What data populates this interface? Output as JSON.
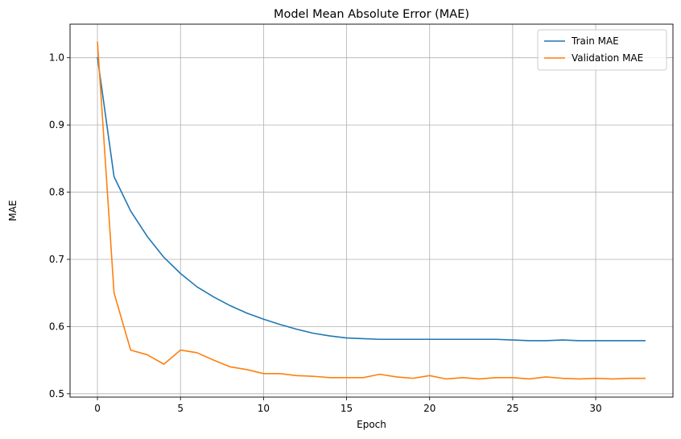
{
  "chart_data": {
    "type": "line",
    "title": "Model Mean Absolute Error (MAE)",
    "xlabel": "Epoch",
    "ylabel": "MAE",
    "xlim": [
      -1.65,
      34.65
    ],
    "ylim": [
      0.495,
      1.05
    ],
    "xticks": [
      0,
      5,
      10,
      15,
      20,
      25,
      30
    ],
    "yticks": [
      0.5,
      0.6,
      0.7,
      0.8,
      0.9,
      1.0
    ],
    "ytick_labels": [
      "0.5",
      "0.6",
      "0.7",
      "0.8",
      "0.9",
      "1.0"
    ],
    "grid": true,
    "legend_position": "top-right",
    "x": [
      0,
      1,
      2,
      3,
      4,
      5,
      6,
      7,
      8,
      9,
      10,
      11,
      12,
      13,
      14,
      15,
      16,
      17,
      18,
      19,
      20,
      21,
      22,
      23,
      24,
      25,
      26,
      27,
      28,
      29,
      30,
      31,
      32,
      33
    ],
    "series": [
      {
        "name": "Train MAE",
        "color": "#1f77b4",
        "values": [
          1.001,
          0.823,
          0.772,
          0.734,
          0.703,
          0.679,
          0.659,
          0.644,
          0.631,
          0.62,
          0.611,
          0.603,
          0.596,
          0.59,
          0.586,
          0.583,
          0.582,
          0.581,
          0.581,
          0.581,
          0.581,
          0.581,
          0.581,
          0.581,
          0.581,
          0.58,
          0.579,
          0.579,
          0.58,
          0.579,
          0.579,
          0.579,
          0.579,
          0.579
        ]
      },
      {
        "name": "Validation MAE",
        "color": "#ff7f0e",
        "values": [
          1.024,
          0.65,
          0.565,
          0.558,
          0.544,
          0.565,
          0.561,
          0.55,
          0.54,
          0.536,
          0.53,
          0.53,
          0.527,
          0.526,
          0.524,
          0.524,
          0.524,
          0.529,
          0.525,
          0.523,
          0.527,
          0.522,
          0.524,
          0.522,
          0.524,
          0.524,
          0.522,
          0.525,
          0.523,
          0.522,
          0.523,
          0.522,
          0.523,
          0.523
        ]
      }
    ]
  }
}
